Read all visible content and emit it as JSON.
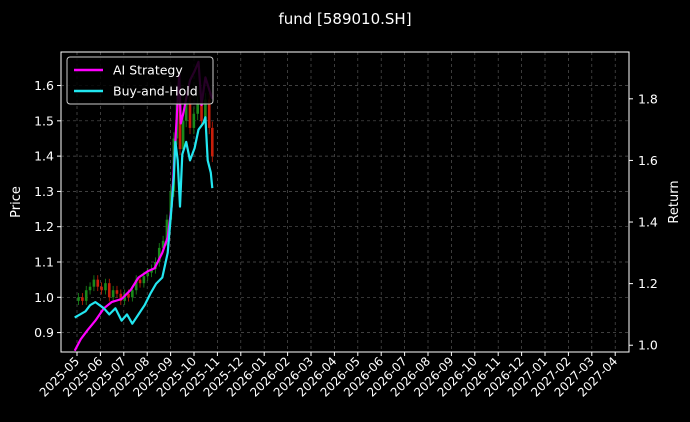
{
  "chart_data": {
    "type": "line",
    "title": "fund [589010.SH]",
    "xlabel": "",
    "ylabel": "Price",
    "y2label": "Return",
    "grid": true,
    "legend_position": "top-left",
    "ylim": [
      0.845,
      1.695
    ],
    "y2lim": [
      0.978,
      1.952
    ],
    "x_ticks": [
      "2025-05",
      "2025-06",
      "2025-07",
      "2025-08",
      "2025-09",
      "2025-10",
      "2025-11",
      "2025-12",
      "2026-01",
      "2026-02",
      "2026-03",
      "2026-04",
      "2026-05",
      "2026-06",
      "2026-07",
      "2026-08",
      "2026-09",
      "2026-10",
      "2026-11",
      "2026-12",
      "2027-01",
      "2027-02",
      "2027-03",
      "2027-04"
    ],
    "y_ticks": [
      0.9,
      1.0,
      1.1,
      1.2,
      1.3,
      1.4,
      1.5,
      1.6
    ],
    "y2_ticks": [
      1.0,
      1.2,
      1.4,
      1.6,
      1.8
    ],
    "colors": {
      "background": "#000000",
      "ai_strategy": "#ff00ff",
      "buy_and_hold": "#22e6f0",
      "candle_up": "#1a8a1a",
      "candle_down": "#c81e0a",
      "grid": "#555555",
      "text": "#ffffff"
    },
    "series": [
      {
        "name": "AI Strategy",
        "axis": "return",
        "points": [
          [
            "2025-04-28",
            0.982
          ],
          [
            "2025-05-06",
            1.02
          ],
          [
            "2025-05-15",
            1.05
          ],
          [
            "2025-05-25",
            1.08
          ],
          [
            "2025-06-05",
            1.12
          ],
          [
            "2025-06-15",
            1.14
          ],
          [
            "2025-06-28",
            1.15
          ],
          [
            "2025-07-10",
            1.18
          ],
          [
            "2025-07-20",
            1.22
          ],
          [
            "2025-08-01",
            1.24
          ],
          [
            "2025-08-10",
            1.25
          ],
          [
            "2025-08-20",
            1.3
          ],
          [
            "2025-08-27",
            1.35
          ],
          [
            "2025-09-01",
            1.45
          ],
          [
            "2025-09-05",
            1.62
          ],
          [
            "2025-09-08",
            1.75
          ],
          [
            "2025-09-11",
            1.88
          ],
          [
            "2025-09-13",
            1.72
          ],
          [
            "2025-09-16",
            1.75
          ],
          [
            "2025-09-20",
            1.8
          ],
          [
            "2025-09-25",
            1.86
          ],
          [
            "2025-10-01",
            1.89
          ],
          [
            "2025-10-06",
            1.92
          ],
          [
            "2025-10-10",
            1.78
          ],
          [
            "2025-10-15",
            1.87
          ],
          [
            "2025-10-20",
            1.83
          ],
          [
            "2025-10-24",
            1.8
          ]
        ]
      },
      {
        "name": "Buy-and-Hold",
        "axis": "return",
        "points": [
          [
            "2025-04-28",
            1.09
          ],
          [
            "2025-05-05",
            1.1
          ],
          [
            "2025-05-12",
            1.11
          ],
          [
            "2025-05-18",
            1.13
          ],
          [
            "2025-05-25",
            1.14
          ],
          [
            "2025-06-05",
            1.12
          ],
          [
            "2025-06-12",
            1.1
          ],
          [
            "2025-06-20",
            1.12
          ],
          [
            "2025-06-28",
            1.08
          ],
          [
            "2025-07-05",
            1.1
          ],
          [
            "2025-07-12",
            1.07
          ],
          [
            "2025-07-20",
            1.1
          ],
          [
            "2025-07-28",
            1.13
          ],
          [
            "2025-08-05",
            1.17
          ],
          [
            "2025-08-12",
            1.2
          ],
          [
            "2025-08-20",
            1.22
          ],
          [
            "2025-08-27",
            1.3
          ],
          [
            "2025-09-01",
            1.45
          ],
          [
            "2025-09-04",
            1.55
          ],
          [
            "2025-09-06",
            1.66
          ],
          [
            "2025-09-09",
            1.6
          ],
          [
            "2025-09-12",
            1.45
          ],
          [
            "2025-09-15",
            1.62
          ],
          [
            "2025-09-20",
            1.66
          ],
          [
            "2025-09-25",
            1.6
          ],
          [
            "2025-10-01",
            1.64
          ],
          [
            "2025-10-06",
            1.7
          ],
          [
            "2025-10-12",
            1.72
          ],
          [
            "2025-10-15",
            1.74
          ],
          [
            "2025-10-18",
            1.6
          ],
          [
            "2025-10-22",
            1.56
          ],
          [
            "2025-10-24",
            1.51
          ]
        ]
      }
    ],
    "price_series": {
      "name": "Price",
      "axis": "price",
      "points": [
        [
          "2025-04-28",
          0.99
        ],
        [
          "2025-05-03",
          1.0
        ],
        [
          "2025-05-08",
          0.99
        ],
        [
          "2025-05-13",
          1.02
        ],
        [
          "2025-05-18",
          1.03
        ],
        [
          "2025-05-23",
          1.05
        ],
        [
          "2025-05-28",
          1.03
        ],
        [
          "2025-06-02",
          1.02
        ],
        [
          "2025-06-07",
          1.04
        ],
        [
          "2025-06-12",
          1.0
        ],
        [
          "2025-06-17",
          1.02
        ],
        [
          "2025-06-22",
          1.01
        ],
        [
          "2025-06-27",
          0.99
        ],
        [
          "2025-07-02",
          1.01
        ],
        [
          "2025-07-07",
          1.0
        ],
        [
          "2025-07-12",
          1.02
        ],
        [
          "2025-07-17",
          1.05
        ],
        [
          "2025-07-22",
          1.04
        ],
        [
          "2025-07-27",
          1.06
        ],
        [
          "2025-08-01",
          1.07
        ],
        [
          "2025-08-06",
          1.08
        ],
        [
          "2025-08-11",
          1.1
        ],
        [
          "2025-08-16",
          1.14
        ],
        [
          "2025-08-21",
          1.16
        ],
        [
          "2025-08-26",
          1.22
        ],
        [
          "2025-08-31",
          1.3
        ],
        [
          "2025-09-04",
          1.45
        ],
        [
          "2025-09-08",
          1.55
        ],
        [
          "2025-09-12",
          1.42
        ],
        [
          "2025-09-16",
          1.5
        ],
        [
          "2025-09-20",
          1.55
        ],
        [
          "2025-09-25",
          1.48
        ],
        [
          "2025-09-30",
          1.52
        ],
        [
          "2025-10-05",
          1.55
        ],
        [
          "2025-10-10",
          1.5
        ],
        [
          "2025-10-15",
          1.56
        ],
        [
          "2025-10-20",
          1.48
        ],
        [
          "2025-10-24",
          1.4
        ]
      ]
    }
  }
}
